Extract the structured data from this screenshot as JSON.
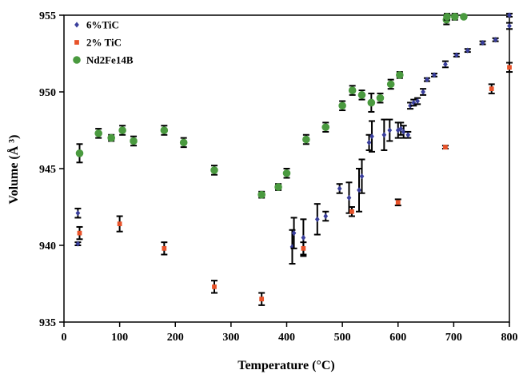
{
  "chart_data": {
    "type": "scatter",
    "xlabel": "Temperature (°C)",
    "ylabel": "Volume (Å ³)",
    "xlim": [
      0,
      800
    ],
    "ylim": [
      935,
      955
    ],
    "xticks": [
      0,
      100,
      200,
      300,
      400,
      500,
      600,
      700,
      800
    ],
    "yticks": [
      935,
      940,
      945,
      950,
      955
    ],
    "legend_position": "top-left",
    "grid": false,
    "series": [
      {
        "name": "6%TiC",
        "marker": "diamond",
        "color": "#3a3f9c",
        "points": [
          {
            "x": 25,
            "y": 942.1,
            "err": 0.3
          },
          {
            "x": 25,
            "y": 940.1,
            "err": 0.1
          },
          {
            "x": 410,
            "y": 939.9,
            "err": 1.1
          },
          {
            "x": 413,
            "y": 940.8,
            "err": 1.0
          },
          {
            "x": 430,
            "y": 940.5,
            "err": 1.2
          },
          {
            "x": 455,
            "y": 941.7,
            "err": 1.0
          },
          {
            "x": 470,
            "y": 941.9,
            "err": 0.3
          },
          {
            "x": 495,
            "y": 943.7,
            "err": 0.3
          },
          {
            "x": 512,
            "y": 943.1,
            "err": 1.0
          },
          {
            "x": 530,
            "y": 943.6,
            "err": 1.4
          },
          {
            "x": 535,
            "y": 944.5,
            "err": 1.1
          },
          {
            "x": 548,
            "y": 946.7,
            "err": 0.5
          },
          {
            "x": 553,
            "y": 947.1,
            "err": 1.0
          },
          {
            "x": 575,
            "y": 947.2,
            "err": 1.0
          },
          {
            "x": 585,
            "y": 947.5,
            "err": 0.7
          },
          {
            "x": 600,
            "y": 947.5,
            "err": 0.5
          },
          {
            "x": 605,
            "y": 947.6,
            "err": 0.4
          },
          {
            "x": 610,
            "y": 947.4,
            "err": 0.4
          },
          {
            "x": 618,
            "y": 947.2,
            "err": 0.2
          },
          {
            "x": 622,
            "y": 949.1,
            "err": 0.2
          },
          {
            "x": 628,
            "y": 949.3,
            "err": 0.2
          },
          {
            "x": 635,
            "y": 949.4,
            "err": 0.2
          },
          {
            "x": 645,
            "y": 950.0,
            "err": 0.2
          },
          {
            "x": 652,
            "y": 950.8,
            "err": 0.1
          },
          {
            "x": 665,
            "y": 951.1,
            "err": 0.1
          },
          {
            "x": 685,
            "y": 951.8,
            "err": 0.2
          },
          {
            "x": 705,
            "y": 952.4,
            "err": 0.1
          },
          {
            "x": 725,
            "y": 952.7,
            "err": 0.1
          },
          {
            "x": 752,
            "y": 953.2,
            "err": 0.1
          },
          {
            "x": 775,
            "y": 953.4,
            "err": 0.1
          },
          {
            "x": 800,
            "y": 954.3,
            "err": 0.2
          },
          {
            "x": 800,
            "y": 955.0,
            "err": 0.1
          }
        ]
      },
      {
        "name": "2% TiC",
        "marker": "square",
        "color": "#e8532a",
        "points": [
          {
            "x": 28,
            "y": 940.8,
            "err": 0.4
          },
          {
            "x": 100,
            "y": 941.4,
            "err": 0.5
          },
          {
            "x": 180,
            "y": 939.8,
            "err": 0.4
          },
          {
            "x": 270,
            "y": 937.3,
            "err": 0.4
          },
          {
            "x": 355,
            "y": 936.5,
            "err": 0.4
          },
          {
            "x": 430,
            "y": 939.8,
            "err": 0.4
          },
          {
            "x": 517,
            "y": 942.2,
            "err": 0.3
          },
          {
            "x": 600,
            "y": 942.8,
            "err": 0.2
          },
          {
            "x": 685,
            "y": 946.4,
            "err": 0.1
          },
          {
            "x": 768,
            "y": 950.2,
            "err": 0.3
          },
          {
            "x": 800,
            "y": 951.6,
            "err": 0.3
          }
        ]
      },
      {
        "name": "Nd2Fe14B",
        "marker": "circle",
        "color": "#4a9a3f",
        "points": [
          {
            "x": 28,
            "y": 946.0,
            "err": 0.6
          },
          {
            "x": 62,
            "y": 947.3,
            "err": 0.3
          },
          {
            "x": 85,
            "y": 947.0,
            "err": 0.2
          },
          {
            "x": 105,
            "y": 947.5,
            "err": 0.3
          },
          {
            "x": 125,
            "y": 946.8,
            "err": 0.3
          },
          {
            "x": 180,
            "y": 947.5,
            "err": 0.3
          },
          {
            "x": 215,
            "y": 946.7,
            "err": 0.3
          },
          {
            "x": 270,
            "y": 944.9,
            "err": 0.3
          },
          {
            "x": 355,
            "y": 943.3,
            "err": 0.2
          },
          {
            "x": 385,
            "y": 943.8,
            "err": 0.2
          },
          {
            "x": 400,
            "y": 944.7,
            "err": 0.3
          },
          {
            "x": 435,
            "y": 946.9,
            "err": 0.3
          },
          {
            "x": 470,
            "y": 947.7,
            "err": 0.3
          },
          {
            "x": 500,
            "y": 949.1,
            "err": 0.3
          },
          {
            "x": 518,
            "y": 950.1,
            "err": 0.3
          },
          {
            "x": 535,
            "y": 949.8,
            "err": 0.3
          },
          {
            "x": 552,
            "y": 949.3,
            "err": 0.6
          },
          {
            "x": 568,
            "y": 949.6,
            "err": 0.3
          },
          {
            "x": 587,
            "y": 950.5,
            "err": 0.3
          },
          {
            "x": 603,
            "y": 951.1,
            "err": 0.2
          },
          {
            "x": 687,
            "y": 954.7,
            "err": 0.3
          },
          {
            "x": 688,
            "y": 954.9,
            "err": 0.2
          },
          {
            "x": 702,
            "y": 954.9,
            "err": 0.2
          },
          {
            "x": 718,
            "y": 954.9,
            "err": 0.1
          }
        ]
      }
    ]
  }
}
